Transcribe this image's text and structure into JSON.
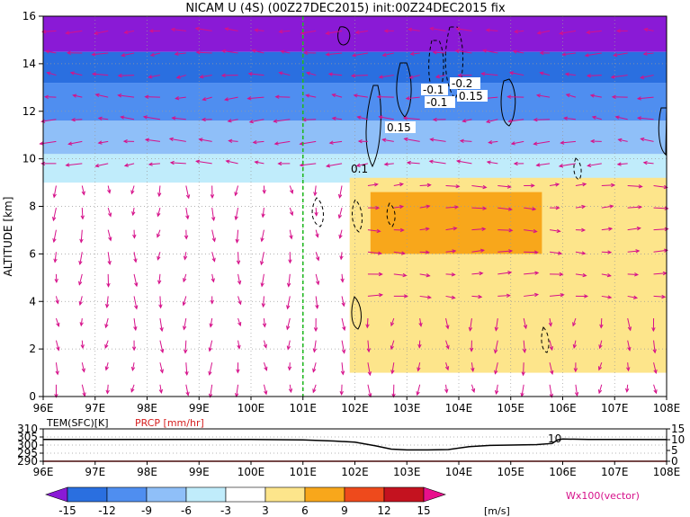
{
  "chart_data": [
    {
      "type": "heatmap",
      "title": "NICAM U (4S) (00Z27DEC2015) init:00Z24DEC2015 fix",
      "ylabel": "ALTITUDE [km]",
      "xlabel": "",
      "x_ticks": [
        "96E",
        "97E",
        "98E",
        "99E",
        "100E",
        "101E",
        "102E",
        "103E",
        "104E",
        "105E",
        "106E",
        "107E",
        "108E"
      ],
      "xlim": [
        96,
        108
      ],
      "y_ticks": [
        "0",
        "2",
        "4",
        "6",
        "8",
        "10",
        "12",
        "14",
        "16"
      ],
      "ylim": [
        0,
        16
      ],
      "marker_line_x": 101,
      "contour_labels": [
        "-0.1",
        "-0.2",
        "0.15",
        "-0.1",
        "0.15",
        "0.15",
        "0.1"
      ],
      "vector_legend": "Wx100(vector)",
      "colors": {
        "-15": "#8a1ad6",
        "-12": "#2a6fe0",
        "-9": "#4f8ef0",
        "-6": "#8fbff8",
        "-3": "#c0ecfb",
        "0": "#ffffff",
        "3": "#fde58b",
        "6": "#f8a71b",
        "9": "#ee4a1c",
        "12": "#c4121f",
        "15": "#e8108c",
        "vector": "#d6108a",
        "marker": "#23b823"
      },
      "regions": [
        {
          "value": -15,
          "x": [
            96,
            108
          ],
          "z": [
            14.5,
            16
          ]
        },
        {
          "value": -12,
          "x": [
            96,
            108
          ],
          "z": [
            13.2,
            14.5
          ]
        },
        {
          "value": -9,
          "x": [
            96,
            108
          ],
          "z": [
            11.6,
            13.2
          ]
        },
        {
          "value": -6,
          "x": [
            96,
            108
          ],
          "z": [
            10.2,
            11.6
          ]
        },
        {
          "value": -3,
          "x": [
            96,
            108
          ],
          "z": [
            9.0,
            10.2
          ]
        },
        {
          "value": 3,
          "x": [
            101.9,
            108
          ],
          "z": [
            1.0,
            9.2
          ]
        },
        {
          "value": 6,
          "x": [
            102.3,
            105.6
          ],
          "z": [
            6.0,
            8.6
          ]
        }
      ],
      "colorbar": {
        "ticks": [
          "-15",
          "-12",
          "-9",
          "-6",
          "-3",
          "3",
          "6",
          "9",
          "12",
          "15"
        ],
        "unit": "[m/s]"
      }
    },
    {
      "type": "line",
      "xlim": [
        96,
        108
      ],
      "left_axis_label": "TEM(SFC)[K]",
      "left_ticks": [
        "310",
        "305",
        "300",
        "295",
        "290"
      ],
      "right_axis_label": "PRCP [mm/hr]",
      "right_ticks": [
        "15",
        "10",
        "5",
        "0"
      ],
      "annotation": "10",
      "series": [
        {
          "name": "TEM(SFC)[K]",
          "x": [
            96,
            100,
            101,
            101.6,
            102.0,
            102.4,
            102.7,
            103.0,
            103.4,
            103.8,
            104.2,
            104.6,
            105.0,
            105.5,
            105.8,
            105.9,
            106.0,
            106.5,
            107,
            108
          ],
          "y": [
            303.5,
            303.5,
            303.2,
            302.5,
            301.8,
            299.5,
            297.5,
            297.0,
            297.0,
            297.2,
            299.0,
            299.8,
            300.0,
            300.3,
            301.0,
            303.2,
            303.7,
            303.5,
            303.5,
            303.4
          ]
        },
        {
          "name": "PRCP [mm/hr]",
          "x": [
            96,
            108
          ],
          "y": [
            0,
            0
          ]
        }
      ]
    }
  ]
}
